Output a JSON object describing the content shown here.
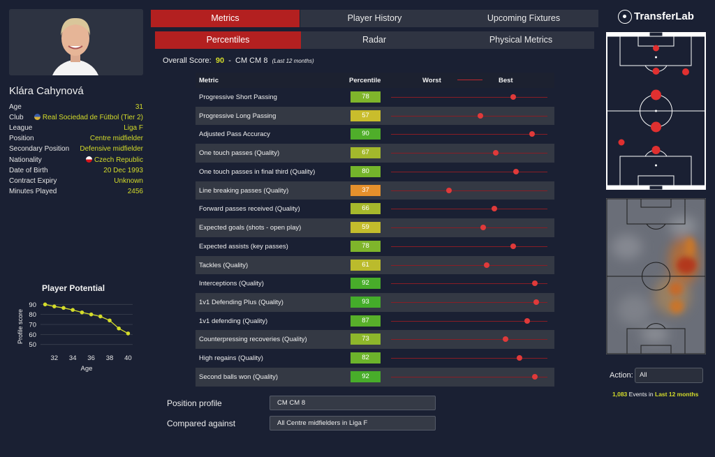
{
  "tabs": {
    "main": [
      "Metrics",
      "Player History",
      "Upcoming Fixtures"
    ],
    "sub": [
      "Percentiles",
      "Radar",
      "Physical Metrics"
    ]
  },
  "player": {
    "name": "Klára Cahynová",
    "info": [
      {
        "label": "Age",
        "value": "31"
      },
      {
        "label": "Club",
        "value": "Real Sociedad de Fútbol (Tier 2)"
      },
      {
        "label": "League",
        "value": "Liga F"
      },
      {
        "label": "Position",
        "value": "Centre midfielder"
      },
      {
        "label": "Secondary Position",
        "value": "Defensive midfielder"
      },
      {
        "label": "Nationality",
        "value": "Czech Republic"
      },
      {
        "label": "Date of Birth",
        "value": "20 Dec 1993"
      },
      {
        "label": "Contract Expiry",
        "value": "Unknown"
      },
      {
        "label": "Minutes Played",
        "value": "2456"
      }
    ]
  },
  "overall": {
    "label": "Overall Score:",
    "score": "90",
    "sep": "-",
    "position": "CM CM 8",
    "note": "(Last 12 months)"
  },
  "table": {
    "headers": {
      "metric": "Metric",
      "percentile": "Percentile",
      "worst": "Worst",
      "best": "Best"
    },
    "rows": [
      {
        "metric": "Progressive Short Passing",
        "percentile": 78,
        "color": "#7fb52b"
      },
      {
        "metric": "Progressive Long Passing",
        "percentile": 57,
        "color": "#c9bd2c"
      },
      {
        "metric": "Adjusted Pass Accuracy",
        "percentile": 90,
        "color": "#4fae2a"
      },
      {
        "metric": "One touch passes (Quality)",
        "percentile": 67,
        "color": "#a3b82c"
      },
      {
        "metric": "One touch passes in final third (Quality)",
        "percentile": 80,
        "color": "#74b42b"
      },
      {
        "metric": "Line breaking passes (Quality)",
        "percentile": 37,
        "color": "#e5902c"
      },
      {
        "metric": "Forward passes received (Quality)",
        "percentile": 66,
        "color": "#a6b82c"
      },
      {
        "metric": "Expected goals (shots - open play)",
        "percentile": 59,
        "color": "#c3bc2c"
      },
      {
        "metric": "Expected assists (key passes)",
        "percentile": 78,
        "color": "#7fb52b"
      },
      {
        "metric": "Tackles (Quality)",
        "percentile": 61,
        "color": "#bbbb2c"
      },
      {
        "metric": "Interceptions (Quality)",
        "percentile": 92,
        "color": "#48ad2a"
      },
      {
        "metric": "1v1 Defending Plus (Quality)",
        "percentile": 93,
        "color": "#44ac2a"
      },
      {
        "metric": "1v1 defending (Quality)",
        "percentile": 87,
        "color": "#58af2a"
      },
      {
        "metric": "Counterpressing recoveries (Quality)",
        "percentile": 73,
        "color": "#8db62b"
      },
      {
        "metric": "High regains (Quality)",
        "percentile": 82,
        "color": "#6cb32b"
      },
      {
        "metric": "Second balls won (Quality)",
        "percentile": 92,
        "color": "#48ad2a"
      }
    ]
  },
  "bottom": {
    "position_label": "Position profile",
    "position_value": "CM CM 8",
    "compared_label": "Compared against",
    "compared_value": "All Centre midfielders in Liga F"
  },
  "brand": "TransferLab",
  "action": {
    "label": "Action:",
    "value": "All"
  },
  "events": {
    "count": "1,083",
    "text": "Events in",
    "period": "Last 12 months"
  },
  "chart_data": {
    "type": "line",
    "title": "Player Potential",
    "xlabel": "Age",
    "ylabel": "Profile score",
    "x": [
      31,
      32,
      33,
      34,
      35,
      36,
      37,
      38,
      39,
      40
    ],
    "values": [
      90,
      88,
      86.5,
      84.5,
      82,
      80,
      78,
      74,
      66,
      61
    ],
    "xticks": [
      32,
      34,
      36,
      38,
      40
    ],
    "yticks": [
      50,
      60,
      70,
      80,
      90
    ],
    "xlim": [
      30.5,
      40.5
    ],
    "ylim": [
      47,
      93
    ],
    "color": "#d4dc2a",
    "grid": true
  }
}
